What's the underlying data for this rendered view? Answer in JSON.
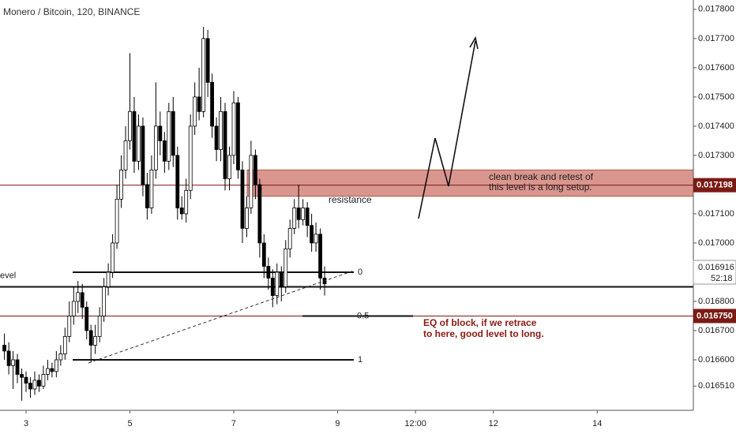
{
  "chart_data": {
    "type": "candlestick",
    "title": "Monero / Bitcoin, 120, BINANCE",
    "x": [
      2.583,
      2.667,
      2.75,
      2.833,
      2.917,
      3,
      3.083,
      3.167,
      3.25,
      3.333,
      3.417,
      3.5,
      3.583,
      3.667,
      3.75,
      3.833,
      3.917,
      4,
      4.083,
      4.167,
      4.25,
      4.333,
      4.417,
      4.5,
      4.583,
      4.667,
      4.75,
      4.833,
      4.917,
      5,
      5.083,
      5.167,
      5.25,
      5.333,
      5.417,
      5.5,
      5.583,
      5.667,
      5.75,
      5.833,
      5.917,
      6,
      6.083,
      6.167,
      6.25,
      6.333,
      6.417,
      6.5,
      6.583,
      6.667,
      6.75,
      6.833,
      6.917,
      7,
      7.083,
      7.167,
      7.25,
      7.333,
      7.417,
      7.5,
      7.583,
      7.667,
      7.75,
      7.833,
      7.917,
      8,
      8.083,
      8.167,
      8.25,
      8.333,
      8.417,
      8.5,
      8.583,
      8.667,
      8.75
    ],
    "open": [
      0.01665,
      0.01663,
      0.01658,
      0.0166,
      0.01655,
      0.01654,
      0.01652,
      0.0165,
      0.01653,
      0.01651,
      0.01655,
      0.01657,
      0.01656,
      0.0166,
      0.01662,
      0.01668,
      0.01675,
      0.0168,
      0.01683,
      0.01678,
      0.0167,
      0.01665,
      0.01668,
      0.01675,
      0.01685,
      0.0169,
      0.017,
      0.01715,
      0.01725,
      0.01735,
      0.01745,
      0.01728,
      0.0174,
      0.0172,
      0.01712,
      0.01725,
      0.0174,
      0.01735,
      0.01728,
      0.01745,
      0.0173,
      0.01712,
      0.0171,
      0.01718,
      0.0174,
      0.0175,
      0.01745,
      0.0177,
      0.01755,
      0.0174,
      0.01732,
      0.01745,
      0.01722,
      0.0173,
      0.01748,
      0.01725,
      0.01705,
      0.01712,
      0.0173,
      0.0172,
      0.017,
      0.01692,
      0.01688,
      0.01682,
      0.0169,
      0.01685,
      0.01698,
      0.01705,
      0.01712,
      0.01708,
      0.01712,
      0.01706,
      0.017,
      0.01703,
      0.01688
    ],
    "high": [
      0.01669,
      0.01666,
      0.01663,
      0.01662,
      0.01657,
      0.01656,
      0.01654,
      0.01656,
      0.01655,
      0.01658,
      0.0166,
      0.01659,
      0.01663,
      0.01665,
      0.01671,
      0.0168,
      0.01685,
      0.01687,
      0.01686,
      0.0168,
      0.01672,
      0.01672,
      0.01678,
      0.01688,
      0.01693,
      0.01703,
      0.0172,
      0.0173,
      0.0174,
      0.01765,
      0.0175,
      0.01744,
      0.01743,
      0.01724,
      0.0173,
      0.01755,
      0.01745,
      0.01738,
      0.01748,
      0.0175,
      0.01733,
      0.01716,
      0.01722,
      0.01744,
      0.01755,
      0.0176,
      0.01774,
      0.01773,
      0.01758,
      0.01743,
      0.0175,
      0.01748,
      0.01733,
      0.01752,
      0.0175,
      0.01728,
      0.01716,
      0.01735,
      0.01732,
      0.01722,
      0.01703,
      0.01695,
      0.01691,
      0.01693,
      0.01692,
      0.01701,
      0.01708,
      0.01715,
      0.0172,
      0.01715,
      0.01714,
      0.0171,
      0.01707,
      0.01705,
      0.01692
    ],
    "low": [
      0.0166,
      0.01655,
      0.0165,
      0.01652,
      0.01646,
      0.01649,
      0.01647,
      0.01648,
      0.01649,
      0.0165,
      0.01653,
      0.01654,
      0.01654,
      0.01658,
      0.0166,
      0.01666,
      0.01672,
      0.01676,
      0.01674,
      0.01667,
      0.01659,
      0.01662,
      0.01666,
      0.01673,
      0.01682,
      0.01688,
      0.01698,
      0.01712,
      0.01722,
      0.01732,
      0.01724,
      0.01725,
      0.01716,
      0.01708,
      0.0171,
      0.01722,
      0.0173,
      0.01724,
      0.01725,
      0.01726,
      0.01708,
      0.01708,
      0.01707,
      0.01715,
      0.01737,
      0.01742,
      0.01743,
      0.0175,
      0.01736,
      0.01728,
      0.01728,
      0.01718,
      0.01718,
      0.01727,
      0.01722,
      0.017,
      0.01702,
      0.0171,
      0.01715,
      0.01695,
      0.01688,
      0.01684,
      0.01678,
      0.01679,
      0.0168,
      0.01683,
      0.01695,
      0.01703,
      0.01705,
      0.01706,
      0.01702,
      0.01697,
      0.01697,
      0.01684,
      0.01682
    ],
    "close": [
      0.01663,
      0.01658,
      0.0166,
      0.01655,
      0.01654,
      0.01652,
      0.0165,
      0.01653,
      0.01651,
      0.01655,
      0.01657,
      0.01656,
      0.0166,
      0.01662,
      0.01668,
      0.01675,
      0.0168,
      0.01683,
      0.01678,
      0.0167,
      0.01665,
      0.01668,
      0.01675,
      0.01685,
      0.0169,
      0.017,
      0.01715,
      0.01725,
      0.01735,
      0.01745,
      0.01728,
      0.0174,
      0.0172,
      0.01712,
      0.01725,
      0.0174,
      0.01735,
      0.01728,
      0.01745,
      0.0173,
      0.01712,
      0.0171,
      0.01718,
      0.0174,
      0.0175,
      0.01745,
      0.0177,
      0.01755,
      0.0174,
      0.01732,
      0.01745,
      0.01722,
      0.0173,
      0.01748,
      0.01725,
      0.01705,
      0.01712,
      0.0173,
      0.0172,
      0.017,
      0.01692,
      0.01688,
      0.01682,
      0.0169,
      0.01685,
      0.01698,
      0.01705,
      0.01712,
      0.01708,
      0.01712,
      0.01706,
      0.017,
      0.01703,
      0.01688,
      0.01686
    ],
    "up_color": "#ffffff",
    "down_color": "#000000",
    "xlim": [
      2.498,
      15.852
    ],
    "xticks": [
      3,
      5,
      7,
      9,
      {
        "value": 10.5,
        "label": "12:00"
      },
      12,
      14
    ],
    "ylim": [
      0.016427,
      0.017832
    ],
    "yticks": [
      {
        "value": 0.0178,
        "label": "0.017800"
      },
      {
        "value": 0.0177,
        "label": "0.017700"
      },
      {
        "value": 0.0176,
        "label": "0.017600"
      },
      {
        "value": 0.0175,
        "label": "0.017500"
      },
      {
        "value": 0.0174,
        "label": "0.017400"
      },
      {
        "value": 0.0173,
        "label": "0.017300"
      },
      {
        "value": 0.0171,
        "label": "0.017100"
      },
      {
        "value": 0.017,
        "label": "0.017000"
      },
      {
        "value": 0.0168,
        "label": "0.016800"
      },
      {
        "value": 0.0167,
        "label": "0.016700"
      },
      {
        "value": 0.0166,
        "label": "0.016600"
      },
      {
        "value": 0.01651,
        "label": "0.016510"
      }
    ],
    "grid": false,
    "price_lines": [
      {
        "value": 0.017198,
        "label": "0.017198",
        "color": "#7a1a14"
      },
      {
        "value": 0.01675,
        "label": "0.016750",
        "color": "#7a1a14"
      }
    ],
    "last_price": {
      "value": 0.016916,
      "label": "0.016916",
      "countdown": "52:18"
    },
    "level_line": {
      "value": 0.01685,
      "label": "evel"
    },
    "zone": {
      "values": [
        0.01716,
        0.01725
      ],
      "color": "#d9968e"
    },
    "fib": {
      "levels": [
        0,
        0.5,
        1
      ],
      "prices": [
        0.0169,
        0.01675,
        0.0166
      ]
    },
    "annotations": [
      "resistance",
      "clean break and retest of",
      "this level is a long setup.",
      "EQ of block, if we retrace",
      "to here, good level to long."
    ]
  }
}
